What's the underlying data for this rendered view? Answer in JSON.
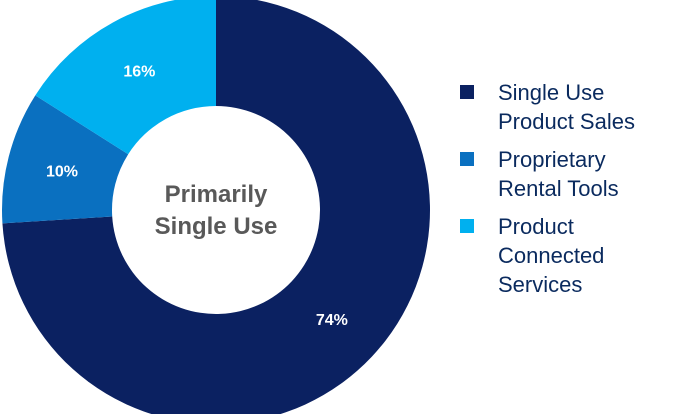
{
  "chart_data": {
    "type": "pie",
    "title": "",
    "center_label": "Primarily\nSingle Use",
    "slices": [
      {
        "name": "Single Use Product Sales",
        "legend_text": "Single Use\nProduct Sales",
        "value": 74,
        "label": "74%",
        "color": "#0b2161"
      },
      {
        "name": "Proprietary Rental Tools",
        "legend_text": "Proprietary\nRental Tools",
        "value": 10,
        "label": "10%",
        "color": "#0a70c0"
      },
      {
        "name": "Product Connected Services",
        "legend_text": "Product\nConnected\nServices",
        "value": 16,
        "label": "16%",
        "color": "#00b0ef"
      }
    ],
    "legend_position": "right"
  }
}
